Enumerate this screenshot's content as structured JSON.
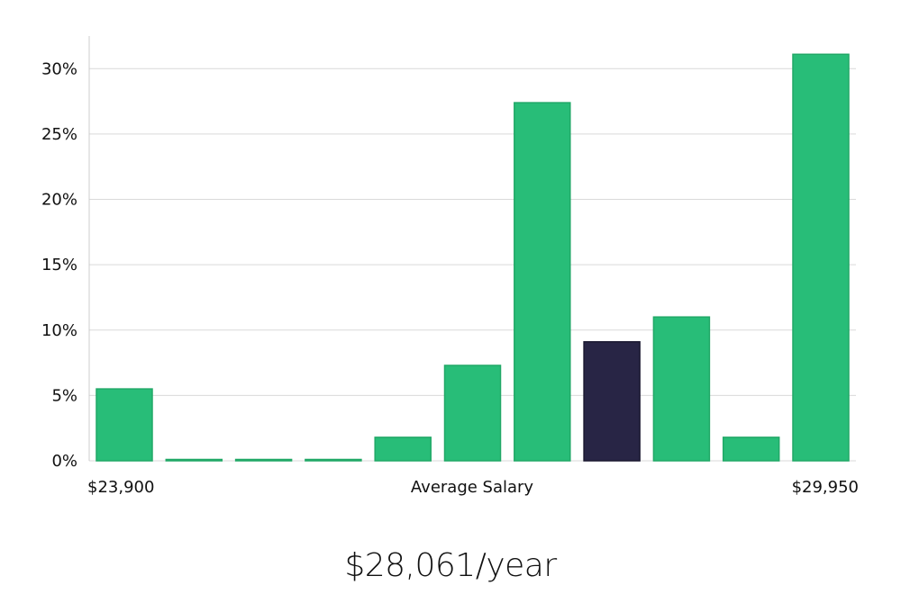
{
  "chart_data": {
    "type": "bar",
    "title": "",
    "xlabel": "Average Salary",
    "ylabel": "",
    "x_range_labels": {
      "min": "$23,900",
      "max": "$29,950"
    },
    "y_ticks": [
      0,
      5,
      10,
      15,
      20,
      25,
      30
    ],
    "y_tick_suffix": "%",
    "ylim": [
      0,
      32.5
    ],
    "grid": true,
    "values": [
      5.5,
      0.1,
      0.1,
      0.1,
      1.8,
      7.3,
      27.4,
      9.1,
      11.0,
      1.8,
      31.1
    ],
    "highlight_index": 7,
    "colors": {
      "bar": "#28bd78",
      "bar_stroke": "#21a867",
      "highlight": "#282545",
      "highlight_stroke": "#1a1830"
    }
  },
  "summary": {
    "salary": "$28,061/year"
  }
}
